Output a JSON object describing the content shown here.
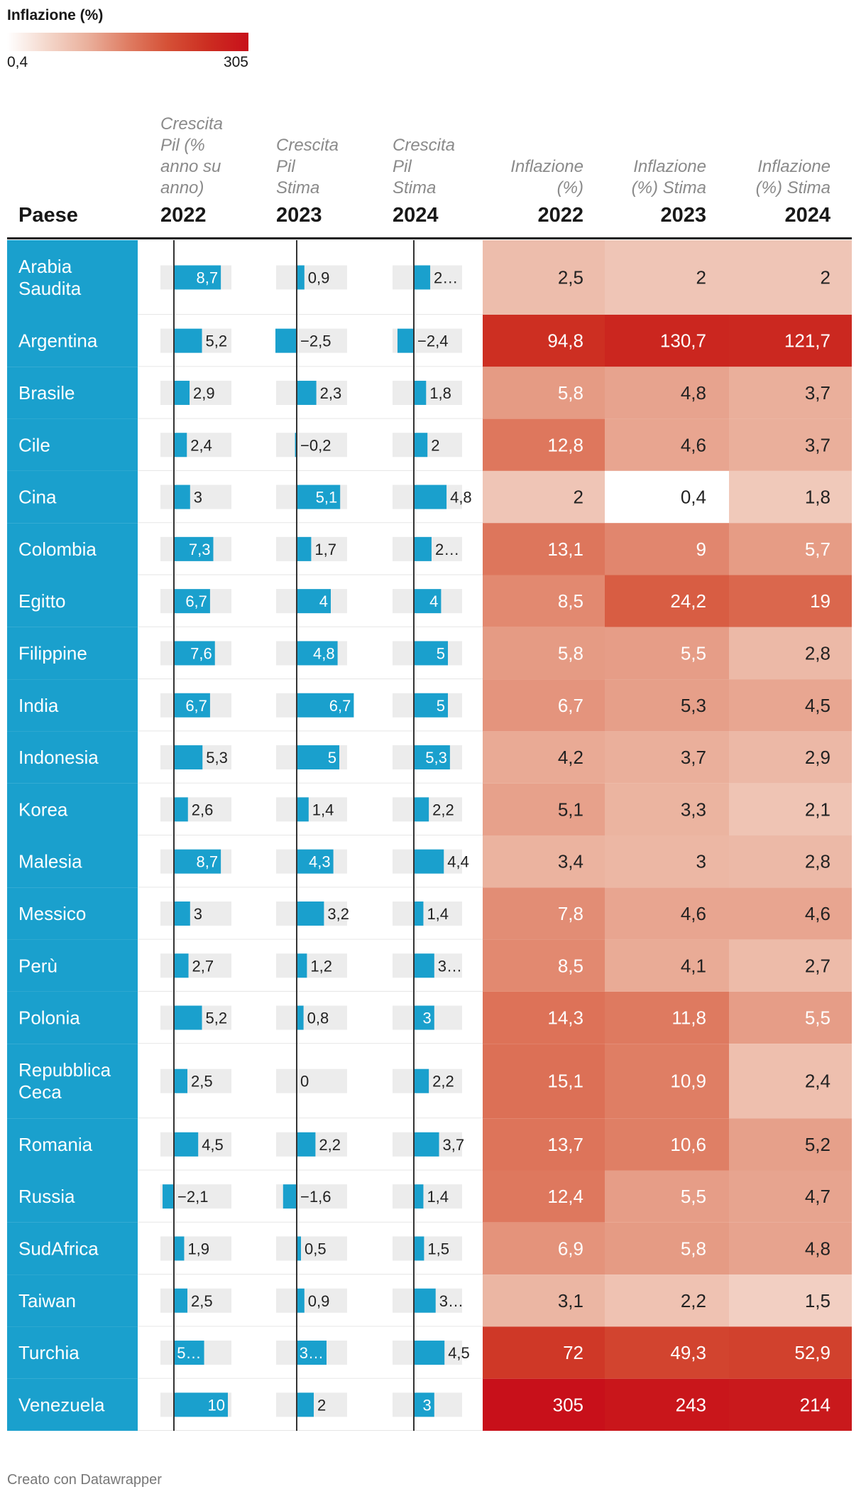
{
  "legend": {
    "title": "Inflazione (%)",
    "min_label": "0,4",
    "max_label": "305",
    "color_low": "#ffffff",
    "color_high": "#c8101a"
  },
  "header": {
    "country_col": "Paese",
    "cols": [
      {
        "subtitle_lines": [
          "Crescita",
          "Pil (%",
          "anno su",
          "anno)"
        ],
        "year": "2022"
      },
      {
        "subtitle_lines": [
          "Crescita",
          "Pil",
          "Stima"
        ],
        "year": "2023"
      },
      {
        "subtitle_lines": [
          "Crescita",
          "Pil",
          "Stima"
        ],
        "year": "2024"
      },
      {
        "subtitle_lines": [
          "Inflazione",
          "(%)"
        ],
        "year": "2022"
      },
      {
        "subtitle_lines": [
          "Inflazione",
          "(%) Stima"
        ],
        "year": "2023"
      },
      {
        "subtitle_lines": [
          "Inflazione",
          "(%) Stima"
        ],
        "year": "2024"
      }
    ]
  },
  "chart_data": {
    "type": "table",
    "gdp_scale_max": 10,
    "colors": {
      "country_bg": "#1aa0cd",
      "bar": "#1aa0cd",
      "bar_bg": "#ececec",
      "heat_scale": [
        "#ffffff",
        "#f4d7cb",
        "#eab09c",
        "#df7d63",
        "#d55036",
        "#cc2d21",
        "#c8101a"
      ]
    },
    "rows": [
      {
        "country_lines": [
          "Arabia",
          "Saudita"
        ],
        "gdp": [
          8.7,
          0.9,
          2.4
        ],
        "gdp_labels": [
          "8,7",
          "0,9",
          "2…"
        ],
        "infl": [
          2.5,
          2,
          2
        ],
        "infl_labels": [
          "2,5",
          "2",
          "2"
        ]
      },
      {
        "country_lines": [
          "Argentina"
        ],
        "gdp": [
          5.2,
          -2.5,
          -2.4
        ],
        "gdp_labels": [
          "5,2",
          "−2,5",
          "−2,4"
        ],
        "infl": [
          94.8,
          130.7,
          121.7
        ],
        "infl_labels": [
          "94,8",
          "130,7",
          "121,7"
        ]
      },
      {
        "country_lines": [
          "Brasile"
        ],
        "gdp": [
          2.9,
          2.3,
          1.8
        ],
        "gdp_labels": [
          "2,9",
          "2,3",
          "1,8"
        ],
        "infl": [
          5.8,
          4.8,
          3.7
        ],
        "infl_labels": [
          "5,8",
          "4,8",
          "3,7"
        ]
      },
      {
        "country_lines": [
          "Cile"
        ],
        "gdp": [
          2.4,
          -0.2,
          2
        ],
        "gdp_labels": [
          "2,4",
          "−0,2",
          "2"
        ],
        "infl": [
          12.8,
          4.6,
          3.7
        ],
        "infl_labels": [
          "12,8",
          "4,6",
          "3,7"
        ]
      },
      {
        "country_lines": [
          "Cina"
        ],
        "gdp": [
          3,
          5.1,
          4.8
        ],
        "gdp_labels": [
          "3",
          "5,1",
          "4,8"
        ],
        "infl": [
          2,
          0.4,
          1.8
        ],
        "infl_labels": [
          "2",
          "0,4",
          "1,8"
        ]
      },
      {
        "country_lines": [
          "Colombia"
        ],
        "gdp": [
          7.3,
          1.7,
          2.6
        ],
        "gdp_labels": [
          "7,3",
          "1,7",
          "2…"
        ],
        "infl": [
          13.1,
          9,
          5.7
        ],
        "infl_labels": [
          "13,1",
          "9",
          "5,7"
        ]
      },
      {
        "country_lines": [
          "Egitto"
        ],
        "gdp": [
          6.7,
          4,
          4
        ],
        "gdp_labels": [
          "6,7",
          "4",
          "4"
        ],
        "infl": [
          8.5,
          24.2,
          19
        ],
        "infl_labels": [
          "8,5",
          "24,2",
          "19"
        ]
      },
      {
        "country_lines": [
          "Filippine"
        ],
        "gdp": [
          7.6,
          4.8,
          5
        ],
        "gdp_labels": [
          "7,6",
          "4,8",
          "5"
        ],
        "infl": [
          5.8,
          5.5,
          2.8
        ],
        "infl_labels": [
          "5,8",
          "5,5",
          "2,8"
        ]
      },
      {
        "country_lines": [
          "India"
        ],
        "gdp": [
          6.7,
          6.7,
          5
        ],
        "gdp_labels": [
          "6,7",
          "6,7",
          "5"
        ],
        "infl": [
          6.7,
          5.3,
          4.5
        ],
        "infl_labels": [
          "6,7",
          "5,3",
          "4,5"
        ]
      },
      {
        "country_lines": [
          "Indonesia"
        ],
        "gdp": [
          5.3,
          5,
          5.3
        ],
        "gdp_labels": [
          "5,3",
          "5",
          "5,3"
        ],
        "infl": [
          4.2,
          3.7,
          2.9
        ],
        "infl_labels": [
          "4,2",
          "3,7",
          "2,9"
        ]
      },
      {
        "country_lines": [
          "Korea"
        ],
        "gdp": [
          2.6,
          1.4,
          2.2
        ],
        "gdp_labels": [
          "2,6",
          "1,4",
          "2,2"
        ],
        "infl": [
          5.1,
          3.3,
          2.1
        ],
        "infl_labels": [
          "5,1",
          "3,3",
          "2,1"
        ]
      },
      {
        "country_lines": [
          "Malesia"
        ],
        "gdp": [
          8.7,
          4.3,
          4.4
        ],
        "gdp_labels": [
          "8,7",
          "4,3",
          "4,4"
        ],
        "infl": [
          3.4,
          3,
          2.8
        ],
        "infl_labels": [
          "3,4",
          "3",
          "2,8"
        ]
      },
      {
        "country_lines": [
          "Messico"
        ],
        "gdp": [
          3,
          3.2,
          1.4
        ],
        "gdp_labels": [
          "3",
          "3,2",
          "1,4"
        ],
        "infl": [
          7.8,
          4.6,
          4.6
        ],
        "infl_labels": [
          "7,8",
          "4,6",
          "4,6"
        ]
      },
      {
        "country_lines": [
          "Perù"
        ],
        "gdp": [
          2.7,
          1.2,
          3
        ],
        "gdp_labels": [
          "2,7",
          "1,2",
          "3…"
        ],
        "infl": [
          8.5,
          4.1,
          2.7
        ],
        "infl_labels": [
          "8,5",
          "4,1",
          "2,7"
        ]
      },
      {
        "country_lines": [
          "Polonia"
        ],
        "gdp": [
          5.2,
          0.8,
          3
        ],
        "gdp_labels": [
          "5,2",
          "0,8",
          "3"
        ],
        "infl": [
          14.3,
          11.8,
          5.5
        ],
        "infl_labels": [
          "14,3",
          "11,8",
          "5,5"
        ]
      },
      {
        "country_lines": [
          "Repubblica",
          "Ceca"
        ],
        "gdp": [
          2.5,
          0,
          2.2
        ],
        "gdp_labels": [
          "2,5",
          "0",
          "2,2"
        ],
        "infl": [
          15.1,
          10.9,
          2.4
        ],
        "infl_labels": [
          "15,1",
          "10,9",
          "2,4"
        ]
      },
      {
        "country_lines": [
          "Romania"
        ],
        "gdp": [
          4.5,
          2.2,
          3.7
        ],
        "gdp_labels": [
          "4,5",
          "2,2",
          "3,7"
        ],
        "infl": [
          13.7,
          10.6,
          5.2
        ],
        "infl_labels": [
          "13,7",
          "10,6",
          "5,2"
        ]
      },
      {
        "country_lines": [
          "Russia"
        ],
        "gdp": [
          -2.1,
          -1.6,
          1.4
        ],
        "gdp_labels": [
          "−2,1",
          "−1,6",
          "1,4"
        ],
        "infl": [
          12.4,
          5.5,
          4.7
        ],
        "infl_labels": [
          "12,4",
          "5,5",
          "4,7"
        ]
      },
      {
        "country_lines": [
          "SudAfrica"
        ],
        "gdp": [
          1.9,
          0.5,
          1.5
        ],
        "gdp_labels": [
          "1,9",
          "0,5",
          "1,5"
        ],
        "infl": [
          6.9,
          5.8,
          4.8
        ],
        "infl_labels": [
          "6,9",
          "5,8",
          "4,8"
        ]
      },
      {
        "country_lines": [
          "Taiwan"
        ],
        "gdp": [
          2.5,
          0.9,
          3.2
        ],
        "gdp_labels": [
          "2,5",
          "0,9",
          "3…"
        ],
        "infl": [
          3.1,
          2.2,
          1.5
        ],
        "infl_labels": [
          "3,1",
          "2,2",
          "1,5"
        ]
      },
      {
        "country_lines": [
          "Turchia"
        ],
        "gdp": [
          5.6,
          3.5,
          4.5
        ],
        "gdp_labels": [
          "5…",
          "3…",
          "4,5"
        ],
        "infl": [
          72,
          49.3,
          52.9
        ],
        "infl_labels": [
          "72",
          "49,3",
          "52,9"
        ]
      },
      {
        "country_lines": [
          "Venezuela"
        ],
        "gdp": [
          10,
          2,
          3
        ],
        "gdp_labels": [
          "10",
          "2",
          "3"
        ],
        "infl": [
          305,
          243,
          214
        ],
        "infl_labels": [
          "305",
          "243",
          "214"
        ]
      }
    ]
  },
  "footer": "Creato con Datawrapper"
}
